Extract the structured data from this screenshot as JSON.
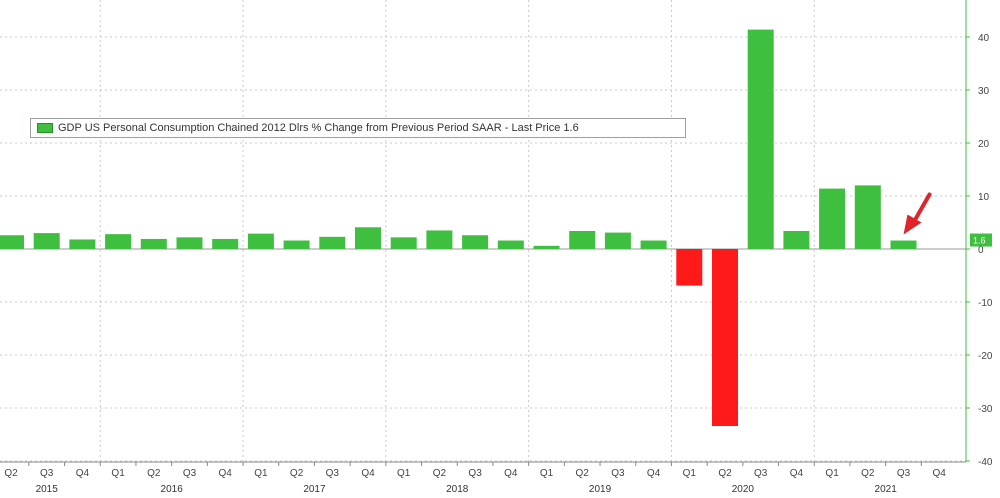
{
  "chart_data": {
    "type": "bar",
    "legend": "GDP US Personal Consumption Chained 2012 Dlrs % Change from Previous Period SAAR - Last Price 1.6",
    "last_price": "1.6",
    "categories": [
      "Q2",
      "Q3",
      "Q4",
      "Q1",
      "Q2",
      "Q3",
      "Q4",
      "Q1",
      "Q2",
      "Q3",
      "Q4",
      "Q1",
      "Q2",
      "Q3",
      "Q4",
      "Q1",
      "Q2",
      "Q3",
      "Q4",
      "Q1",
      "Q2",
      "Q3",
      "Q4",
      "Q1",
      "Q2",
      "Q3",
      "Q4"
    ],
    "years": [
      {
        "label": "2015",
        "start": 0,
        "end": 2
      },
      {
        "label": "2016",
        "start": 3,
        "end": 6
      },
      {
        "label": "2017",
        "start": 7,
        "end": 10
      },
      {
        "label": "2018",
        "start": 11,
        "end": 14
      },
      {
        "label": "2019",
        "start": 15,
        "end": 18
      },
      {
        "label": "2020",
        "start": 19,
        "end": 22
      },
      {
        "label": "2021",
        "start": 23,
        "end": 26
      }
    ],
    "values": [
      2.6,
      3.0,
      1.8,
      2.8,
      1.9,
      2.2,
      1.9,
      2.9,
      1.6,
      2.3,
      4.1,
      2.2,
      3.5,
      2.6,
      1.6,
      0.6,
      3.4,
      3.1,
      1.6,
      -6.9,
      -33.4,
      41.4,
      3.4,
      11.4,
      12.0,
      1.6,
      null
    ],
    "yticks": [
      40,
      30,
      20,
      10,
      0,
      -10,
      -20,
      -30,
      -40
    ],
    "ylim": [
      -40,
      46
    ],
    "grid": true,
    "colors": {
      "positive": "#3fbf3f",
      "negative": "#ff1a1a",
      "axis": "#3fbf3f",
      "grid": "#c8c8c8",
      "arrow": "#e0242a"
    },
    "xlabel": "",
    "ylabel": ""
  }
}
